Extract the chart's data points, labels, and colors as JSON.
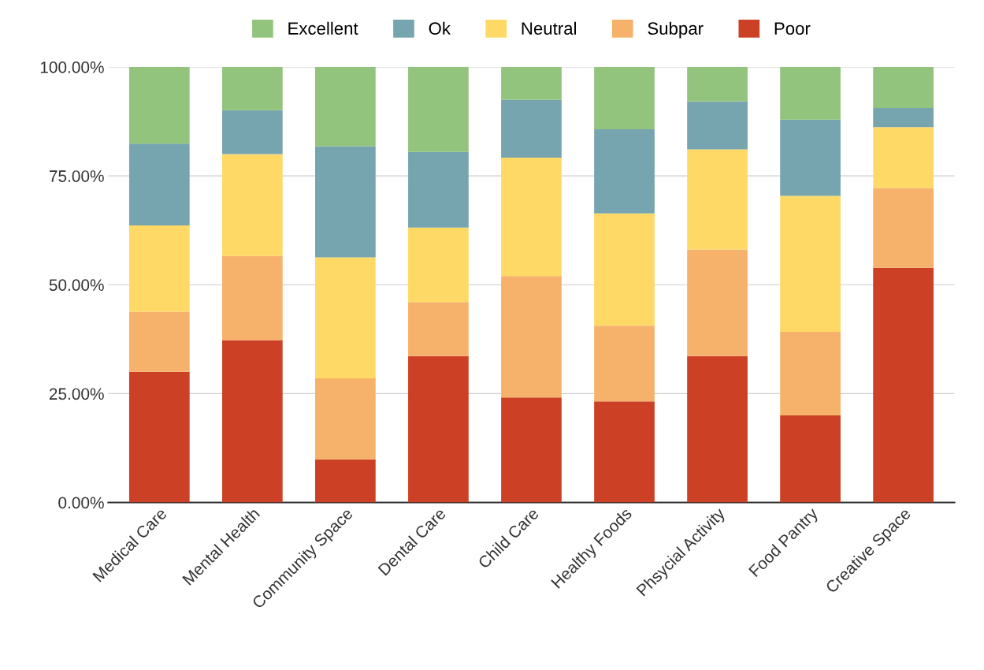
{
  "chart_data": {
    "type": "bar",
    "stacked": true,
    "categories": [
      "Medical Care",
      "Mental Health",
      "Community Space",
      "Dental Care",
      "Child Care",
      "Healthy Foods",
      "Phsycial Activity",
      "Food Pantry",
      "Creative Space"
    ],
    "series": [
      {
        "name": "Poor",
        "color": "#cc4125",
        "values": [
          30.0,
          37.3,
          9.9,
          33.6,
          24.1,
          23.2,
          33.6,
          20.0,
          53.9
        ]
      },
      {
        "name": "Subpar",
        "color": "#f6b26b",
        "values": [
          13.8,
          19.3,
          18.6,
          12.4,
          27.9,
          17.4,
          24.5,
          19.2,
          18.3
        ]
      },
      {
        "name": "Neutral",
        "color": "#ffd966",
        "values": [
          19.8,
          23.4,
          27.8,
          17.1,
          27.2,
          25.8,
          23.0,
          31.2,
          14.0
        ]
      },
      {
        "name": "Ok",
        "color": "#76a5af",
        "values": [
          18.8,
          10.1,
          25.5,
          17.4,
          13.3,
          19.3,
          11.0,
          17.5,
          4.4
        ]
      },
      {
        "name": "Excellent",
        "color": "#93c47d",
        "values": [
          17.6,
          9.9,
          18.2,
          19.5,
          7.5,
          14.3,
          7.9,
          12.1,
          9.4
        ]
      }
    ],
    "ylim": [
      0,
      100
    ],
    "yticks": [
      {
        "value": 0,
        "label": "0.00%"
      },
      {
        "value": 25,
        "label": "25.00%"
      },
      {
        "value": 50,
        "label": "50.00%"
      },
      {
        "value": 75,
        "label": "75.00%"
      },
      {
        "value": 100,
        "label": "100.00%"
      }
    ],
    "grid": "y",
    "legend": "top"
  }
}
